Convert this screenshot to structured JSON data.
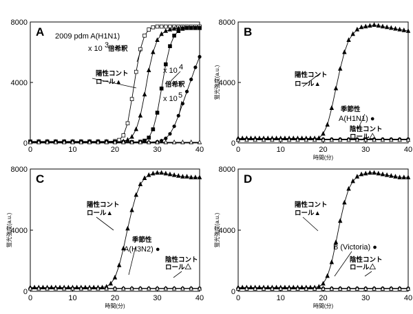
{
  "chart_data": [
    {
      "panel": "A",
      "type": "line",
      "xlabel": "",
      "ylabel": "",
      "xlim": [
        0,
        40
      ],
      "ylim": [
        0,
        8000
      ],
      "xticks": [
        "0",
        "10",
        "20",
        "30",
        "40"
      ],
      "yticks": [
        "0",
        "4000",
        "8000"
      ],
      "annotations": [
        "2009 pdm A(H1N1)",
        "x 10",
        "3",
        "倍希釈",
        "x 10",
        "4",
        "倍希釈",
        "x 10",
        "5",
        "陽性コント",
        "ロール▲"
      ],
      "series": [
        {
          "name": "x10^3 dilution",
          "marker": "open-square",
          "x": [
            0,
            2,
            4,
            6,
            8,
            10,
            12,
            14,
            16,
            18,
            20,
            21,
            22,
            23,
            24,
            25,
            26,
            27,
            28,
            29,
            30,
            31,
            32,
            33,
            34,
            35,
            36,
            37,
            38,
            39,
            40
          ],
          "y": [
            100,
            100,
            100,
            100,
            100,
            100,
            100,
            100,
            100,
            100,
            120,
            200,
            500,
            1300,
            2900,
            4700,
            6200,
            7100,
            7500,
            7650,
            7700,
            7700,
            7700,
            7700,
            7700,
            7700,
            7700,
            7700,
            7700,
            7700,
            7700
          ]
        },
        {
          "name": "陽性コントロール",
          "marker": "filled-triangle",
          "x": [
            0,
            2,
            4,
            6,
            8,
            10,
            12,
            14,
            16,
            18,
            20,
            22,
            23,
            24,
            25,
            26,
            27,
            28,
            29,
            30,
            31,
            32,
            33,
            34,
            35,
            36,
            37,
            38,
            39,
            40
          ],
          "y": [
            80,
            80,
            80,
            80,
            80,
            80,
            80,
            80,
            80,
            80,
            80,
            100,
            200,
            400,
            900,
            1800,
            3200,
            4800,
            6000,
            6800,
            7200,
            7400,
            7500,
            7550,
            7580,
            7600,
            7600,
            7600,
            7600,
            7600
          ]
        },
        {
          "name": "x10^4 dilution",
          "marker": "filled-square",
          "x": [
            0,
            2,
            4,
            6,
            8,
            10,
            12,
            14,
            16,
            18,
            20,
            22,
            24,
            26,
            27,
            28,
            29,
            30,
            31,
            32,
            33,
            34,
            35,
            36,
            37,
            38,
            39,
            40
          ],
          "y": [
            60,
            60,
            60,
            60,
            60,
            60,
            60,
            60,
            60,
            60,
            60,
            60,
            60,
            80,
            150,
            350,
            900,
            2000,
            3600,
            5200,
            6400,
            7100,
            7400,
            7550,
            7600,
            7600,
            7600,
            7600
          ]
        },
        {
          "name": "x10^5 dilution",
          "marker": "filled-circle",
          "x": [
            0,
            2,
            4,
            6,
            8,
            10,
            12,
            14,
            16,
            18,
            20,
            22,
            24,
            26,
            28,
            30,
            31,
            32,
            33,
            34,
            35,
            36,
            37,
            38,
            39,
            40
          ],
          "y": [
            50,
            50,
            50,
            50,
            50,
            50,
            50,
            50,
            50,
            50,
            50,
            50,
            50,
            50,
            50,
            80,
            150,
            300,
            600,
            1100,
            1800,
            2600,
            3400,
            4200,
            5000,
            5700
          ]
        },
        {
          "name": "陰性コントロール",
          "marker": "open-triangle",
          "x": [
            0,
            2,
            4,
            6,
            8,
            10,
            12,
            14,
            16,
            18,
            20,
            22,
            24,
            26,
            28,
            30,
            32,
            34,
            36,
            38,
            40
          ],
          "y": [
            40,
            40,
            40,
            40,
            40,
            40,
            40,
            40,
            40,
            40,
            40,
            40,
            40,
            40,
            40,
            40,
            40,
            40,
            40,
            40,
            40
          ]
        }
      ]
    },
    {
      "panel": "B",
      "type": "line",
      "xlabel": "時間(分)",
      "ylabel": "蛍光強度(a.u.)",
      "xlim": [
        0,
        40
      ],
      "ylim": [
        0,
        8000
      ],
      "xticks": [
        "0",
        "10",
        "20",
        "30",
        "40"
      ],
      "yticks": [
        "0",
        "4000",
        "8000"
      ],
      "annotations": [
        "陽性コント",
        "ロール▲",
        "季節性",
        "A(H1N1) ●",
        "陰性コント",
        "ロール△"
      ],
      "series": [
        {
          "name": "陽性コントロール",
          "marker": "filled-triangle",
          "x": [
            0,
            1,
            2,
            3,
            4,
            5,
            6,
            7,
            8,
            9,
            10,
            11,
            12,
            13,
            14,
            15,
            16,
            17,
            18,
            19,
            20,
            21,
            22,
            23,
            24,
            25,
            26,
            27,
            28,
            29,
            30,
            31,
            32,
            33,
            34,
            35,
            36,
            37,
            38,
            39,
            40
          ],
          "y": [
            300,
            300,
            300,
            300,
            300,
            300,
            300,
            300,
            300,
            300,
            300,
            300,
            300,
            300,
            300,
            300,
            300,
            300,
            300,
            320,
            600,
            1200,
            2300,
            3600,
            4900,
            6000,
            6800,
            7200,
            7500,
            7650,
            7700,
            7750,
            7800,
            7750,
            7700,
            7650,
            7600,
            7550,
            7500,
            7450,
            7400
          ]
        },
        {
          "name": "季節性 A(H1N1)",
          "marker": "filled-circle",
          "x": [
            0,
            2,
            4,
            6,
            8,
            10,
            12,
            14,
            16,
            18,
            20,
            22,
            24,
            26,
            28,
            30,
            32,
            34,
            36,
            38,
            40
          ],
          "y": [
            250,
            250,
            250,
            250,
            250,
            250,
            250,
            250,
            250,
            250,
            250,
            250,
            250,
            250,
            250,
            250,
            250,
            250,
            250,
            250,
            250
          ]
        },
        {
          "name": "陰性コントロール",
          "marker": "open-triangle",
          "x": [
            0,
            2,
            4,
            6,
            8,
            10,
            12,
            14,
            16,
            18,
            20,
            22,
            24,
            26,
            28,
            30,
            32,
            34,
            36,
            38,
            40
          ],
          "y": [
            200,
            200,
            200,
            200,
            200,
            200,
            200,
            200,
            200,
            200,
            200,
            200,
            200,
            200,
            200,
            200,
            200,
            200,
            200,
            200,
            200
          ]
        }
      ]
    },
    {
      "panel": "C",
      "type": "line",
      "xlabel": "時間(分)",
      "ylabel": "蛍光強度(a.u.)",
      "xlim": [
        0,
        40
      ],
      "ylim": [
        0,
        8000
      ],
      "xticks": [
        "0",
        "10",
        "20",
        "30",
        "40"
      ],
      "yticks": [
        "0",
        "4000",
        "8000"
      ],
      "annotations": [
        "陽性コント",
        "ロール▲",
        "季節性",
        "A(H3N2) ●",
        "陰性コント",
        "ロール△"
      ],
      "series": [
        {
          "name": "陽性コントロール",
          "marker": "filled-triangle",
          "x": [
            0,
            1,
            2,
            3,
            4,
            5,
            6,
            7,
            8,
            9,
            10,
            11,
            12,
            13,
            14,
            15,
            16,
            17,
            18,
            19,
            20,
            21,
            22,
            23,
            24,
            25,
            26,
            27,
            28,
            29,
            30,
            31,
            32,
            33,
            34,
            35,
            36,
            37,
            38,
            39,
            40
          ],
          "y": [
            250,
            250,
            250,
            250,
            250,
            250,
            250,
            250,
            250,
            250,
            250,
            250,
            250,
            250,
            250,
            250,
            250,
            250,
            300,
            500,
            900,
            1700,
            2800,
            4100,
            5300,
            6300,
            7000,
            7400,
            7600,
            7700,
            7750,
            7750,
            7700,
            7650,
            7600,
            7550,
            7500,
            7500,
            7450,
            7450,
            7450
          ]
        },
        {
          "name": "季節性 A(H3N2)",
          "marker": "filled-circle",
          "x": [
            0,
            2,
            4,
            6,
            8,
            10,
            12,
            14,
            16,
            18,
            20,
            22,
            24,
            26,
            28,
            30,
            32,
            34,
            36,
            38,
            40
          ],
          "y": [
            200,
            200,
            200,
            200,
            200,
            200,
            200,
            200,
            200,
            200,
            200,
            200,
            200,
            200,
            200,
            200,
            200,
            200,
            200,
            200,
            200
          ]
        },
        {
          "name": "陰性コントロール",
          "marker": "open-triangle",
          "x": [
            0,
            2,
            4,
            6,
            8,
            10,
            12,
            14,
            16,
            18,
            20,
            22,
            24,
            26,
            28,
            30,
            32,
            34,
            36,
            38,
            40
          ],
          "y": [
            180,
            180,
            180,
            180,
            180,
            180,
            180,
            180,
            180,
            180,
            180,
            180,
            180,
            180,
            180,
            180,
            180,
            180,
            180,
            180,
            180
          ]
        }
      ]
    },
    {
      "panel": "D",
      "type": "line",
      "xlabel": "時間(分)",
      "ylabel": "蛍光強度(a.u.)",
      "xlim": [
        0,
        40
      ],
      "ylim": [
        0,
        8000
      ],
      "xticks": [
        "0",
        "10",
        "20",
        "30",
        "40"
      ],
      "yticks": [
        "0",
        "4000",
        "8000"
      ],
      "annotations": [
        "陽性コント",
        "ロール▲",
        "B (Victoria) ●",
        "陰性コント",
        "ロール△"
      ],
      "series": [
        {
          "name": "陽性コントロール",
          "marker": "filled-triangle",
          "x": [
            0,
            1,
            2,
            3,
            4,
            5,
            6,
            7,
            8,
            9,
            10,
            11,
            12,
            13,
            14,
            15,
            16,
            17,
            18,
            19,
            20,
            21,
            22,
            23,
            24,
            25,
            26,
            27,
            28,
            29,
            30,
            31,
            32,
            33,
            34,
            35,
            36,
            37,
            38,
            39,
            40
          ],
          "y": [
            250,
            250,
            250,
            250,
            250,
            250,
            250,
            250,
            250,
            250,
            250,
            250,
            250,
            250,
            250,
            250,
            250,
            250,
            250,
            300,
            500,
            1000,
            1900,
            3200,
            4600,
            5800,
            6700,
            7200,
            7500,
            7650,
            7700,
            7750,
            7750,
            7700,
            7650,
            7600,
            7550,
            7500,
            7450,
            7450,
            7450
          ]
        },
        {
          "name": "B (Victoria)",
          "marker": "filled-circle",
          "x": [
            0,
            2,
            4,
            6,
            8,
            10,
            12,
            14,
            16,
            18,
            20,
            22,
            24,
            26,
            28,
            30,
            32,
            34,
            36,
            38,
            40
          ],
          "y": [
            200,
            200,
            200,
            200,
            200,
            200,
            200,
            200,
            200,
            200,
            200,
            200,
            200,
            200,
            200,
            200,
            200,
            200,
            200,
            200,
            200
          ]
        },
        {
          "name": "陰性コントロール",
          "marker": "open-triangle",
          "x": [
            0,
            2,
            4,
            6,
            8,
            10,
            12,
            14,
            16,
            18,
            20,
            22,
            24,
            26,
            28,
            30,
            32,
            34,
            36,
            38,
            40
          ],
          "y": [
            170,
            170,
            170,
            170,
            170,
            170,
            170,
            170,
            170,
            170,
            170,
            170,
            170,
            170,
            170,
            170,
            170,
            170,
            170,
            170,
            170
          ]
        }
      ]
    }
  ]
}
